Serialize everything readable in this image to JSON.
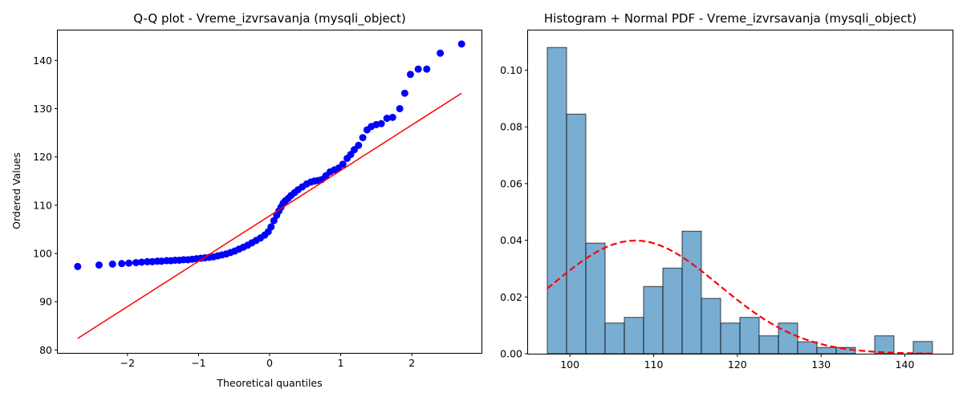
{
  "chart_data": [
    {
      "type": "scatter",
      "title": "Q-Q plot - Vreme_izvrsavanja (mysqli_object)",
      "xlabel": "Theoretical quantiles",
      "ylabel": "Ordered Values",
      "xlim": [
        -2.98,
        2.98
      ],
      "ylim": [
        79.4,
        146.2
      ],
      "xticks": [
        -2,
        -1,
        0,
        1,
        2
      ],
      "yticks": [
        80,
        90,
        100,
        110,
        120,
        130,
        140
      ],
      "xtick_labels": [
        "−2",
        "−1",
        "0",
        "1",
        "2"
      ],
      "ytick_labels": [
        "80",
        "90",
        "100",
        "110",
        "120",
        "130",
        "140"
      ],
      "grid": false,
      "point_color": "#0000ff",
      "line_color": "#ff0000",
      "points": {
        "x": [
          -2.7,
          -2.4,
          -2.21,
          -2.08,
          -1.98,
          -1.88,
          -1.8,
          -1.72,
          -1.65,
          -1.58,
          -1.52,
          -1.45,
          -1.39,
          -1.33,
          -1.27,
          -1.21,
          -1.15,
          -1.09,
          -1.03,
          -0.97,
          -0.91,
          -0.85,
          -0.79,
          -0.73,
          -0.67,
          -0.61,
          -0.55,
          -0.49,
          -0.43,
          -0.37,
          -0.31,
          -0.25,
          -0.19,
          -0.13,
          -0.07,
          -0.02,
          0.02,
          0.06,
          0.1,
          0.13,
          0.16,
          0.19,
          0.22,
          0.26,
          0.3,
          0.35,
          0.4,
          0.46,
          0.52,
          0.58,
          0.63,
          0.68,
          0.73,
          0.79,
          0.85,
          0.91,
          0.97,
          1.03,
          1.09,
          1.14,
          1.19,
          1.25,
          1.31,
          1.37,
          1.43,
          1.5,
          1.57,
          1.65,
          1.73,
          1.83,
          1.9,
          1.98,
          2.09,
          2.21,
          2.4,
          2.7
        ],
        "y": [
          97.3,
          97.6,
          97.8,
          97.9,
          98.0,
          98.1,
          98.2,
          98.3,
          98.3,
          98.4,
          98.4,
          98.5,
          98.5,
          98.6,
          98.6,
          98.7,
          98.7,
          98.8,
          98.9,
          99.0,
          99.1,
          99.2,
          99.3,
          99.5,
          99.7,
          99.9,
          100.2,
          100.5,
          100.9,
          101.3,
          101.7,
          102.2,
          102.7,
          103.2,
          103.8,
          104.5,
          105.5,
          106.8,
          107.9,
          108.8,
          109.6,
          110.4,
          110.9,
          111.4,
          112.0,
          112.6,
          113.2,
          113.8,
          114.4,
          114.8,
          115.0,
          115.1,
          115.3,
          116.1,
          116.9,
          117.3,
          117.7,
          118.5,
          119.7,
          120.5,
          121.5,
          122.4,
          124.0,
          125.6,
          126.3,
          126.7,
          126.9,
          128.0,
          128.2,
          130.0,
          133.2,
          137.1,
          138.2,
          138.2,
          141.5,
          143.4
        ]
      },
      "fit_line": {
        "x": [
          -2.7,
          2.7
        ],
        "y": [
          82.4,
          133.2
        ]
      }
    },
    {
      "type": "bar",
      "title": "Histogram + Normal PDF - Vreme_izvrsavanja (mysqli_object)",
      "xlabel": "",
      "ylabel": "",
      "xlim": [
        95.0,
        145.7
      ],
      "ylim": [
        0,
        0.114
      ],
      "xticks": [
        100,
        110,
        120,
        130,
        140
      ],
      "yticks": [
        0.0,
        0.02,
        0.04,
        0.06,
        0.08,
        0.1
      ],
      "xtick_labels": [
        "100",
        "110",
        "120",
        "130",
        "140"
      ],
      "ytick_labels": [
        "0.00",
        "0.02",
        "0.04",
        "0.06",
        "0.08",
        "0.10"
      ],
      "grid": false,
      "bar_color": "#1f77b4",
      "bar_alpha": 0.6,
      "bin_edges": [
        97.3,
        99.6,
        101.9,
        104.2,
        106.5,
        108.8,
        111.1,
        113.4,
        115.7,
        118.0,
        120.3,
        122.6,
        124.9,
        127.2,
        129.5,
        131.8,
        134.1,
        136.4,
        138.7,
        141.0,
        143.3
      ],
      "values": [
        0.108,
        0.0845,
        0.039,
        0.0108,
        0.0128,
        0.0237,
        0.0302,
        0.0432,
        0.0195,
        0.0108,
        0.0128,
        0.0063,
        0.0108,
        0.0042,
        0.0022,
        0.0022,
        0.0,
        0.0063,
        0.0,
        0.0043
      ],
      "pdf": {
        "mean": 107.8,
        "std": 10.0,
        "x_range": [
          97.3,
          143.3
        ],
        "color": "#ff0000",
        "style": "dashed"
      }
    }
  ]
}
